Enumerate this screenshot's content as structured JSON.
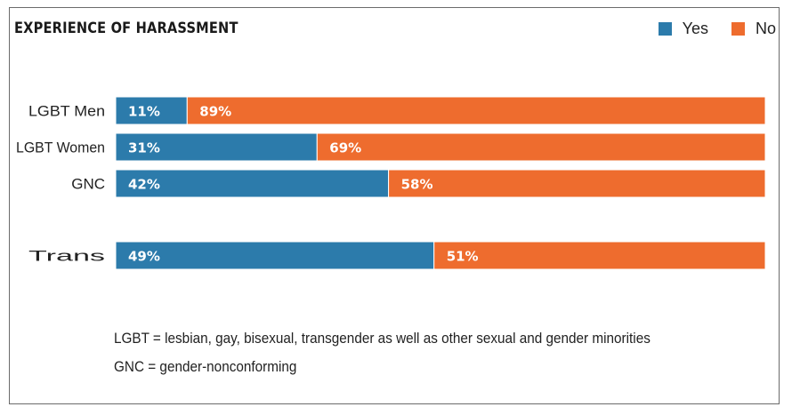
{
  "colors": {
    "yes": "#2c7bab",
    "no": "#ee6c2e"
  },
  "chart_data": {
    "type": "bar",
    "orientation": "horizontal",
    "stacked": true,
    "title": "EXPERIENCE OF HARASSMENT",
    "categories": [
      "LGBT Men",
      "LGBT Women",
      "GNC",
      "Trans"
    ],
    "series": [
      {
        "name": "Yes",
        "values": [
          11,
          31,
          42,
          49
        ],
        "labels": [
          "11%",
          "31%",
          "42%",
          "49%"
        ]
      },
      {
        "name": "No",
        "values": [
          89,
          69,
          58,
          51
        ],
        "labels": [
          "89%",
          "69%",
          "58%",
          "51%"
        ]
      }
    ],
    "xlim": [
      0,
      100
    ],
    "grid": false,
    "legend_position": "top-right"
  },
  "footnotes": [
    "LGBT = lesbian, gay, bisexual, transgender as well as other sexual and gender minorities",
    "GNC = gender-nonconforming"
  ]
}
